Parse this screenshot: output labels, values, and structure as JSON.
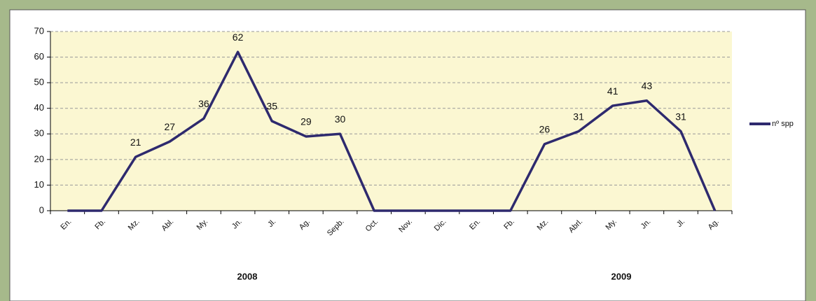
{
  "chart_data": {
    "type": "line",
    "categories": [
      "En.",
      "Fb.",
      "Mz.",
      "Abl.",
      "My.",
      "Jn.",
      "Jl.",
      "Ag.",
      "Sepb.",
      "Oct.",
      "Nov.",
      "Dic.",
      "En.",
      "Fb.",
      "Mz.",
      "Abrl.",
      "My.",
      "Jn.",
      "Jl.",
      "Ag."
    ],
    "x_groups": [
      "2008",
      "2009"
    ],
    "series": [
      {
        "name": "nº spp",
        "color": "#2e2a6e",
        "values": [
          0,
          0,
          21,
          27,
          36,
          62,
          35,
          29,
          30,
          0,
          0,
          0,
          0,
          0,
          26,
          31,
          41,
          43,
          31,
          0
        ],
        "value_labels": [
          null,
          null,
          "21",
          "27",
          "36",
          "62",
          "35",
          "29",
          "30",
          null,
          null,
          null,
          null,
          null,
          "26",
          "31",
          "41",
          "43",
          "31",
          null
        ]
      }
    ],
    "ylim": [
      0,
      70
    ],
    "yticks": [
      0,
      10,
      20,
      30,
      40,
      50,
      60,
      70
    ],
    "grid": true,
    "legend": "right"
  }
}
